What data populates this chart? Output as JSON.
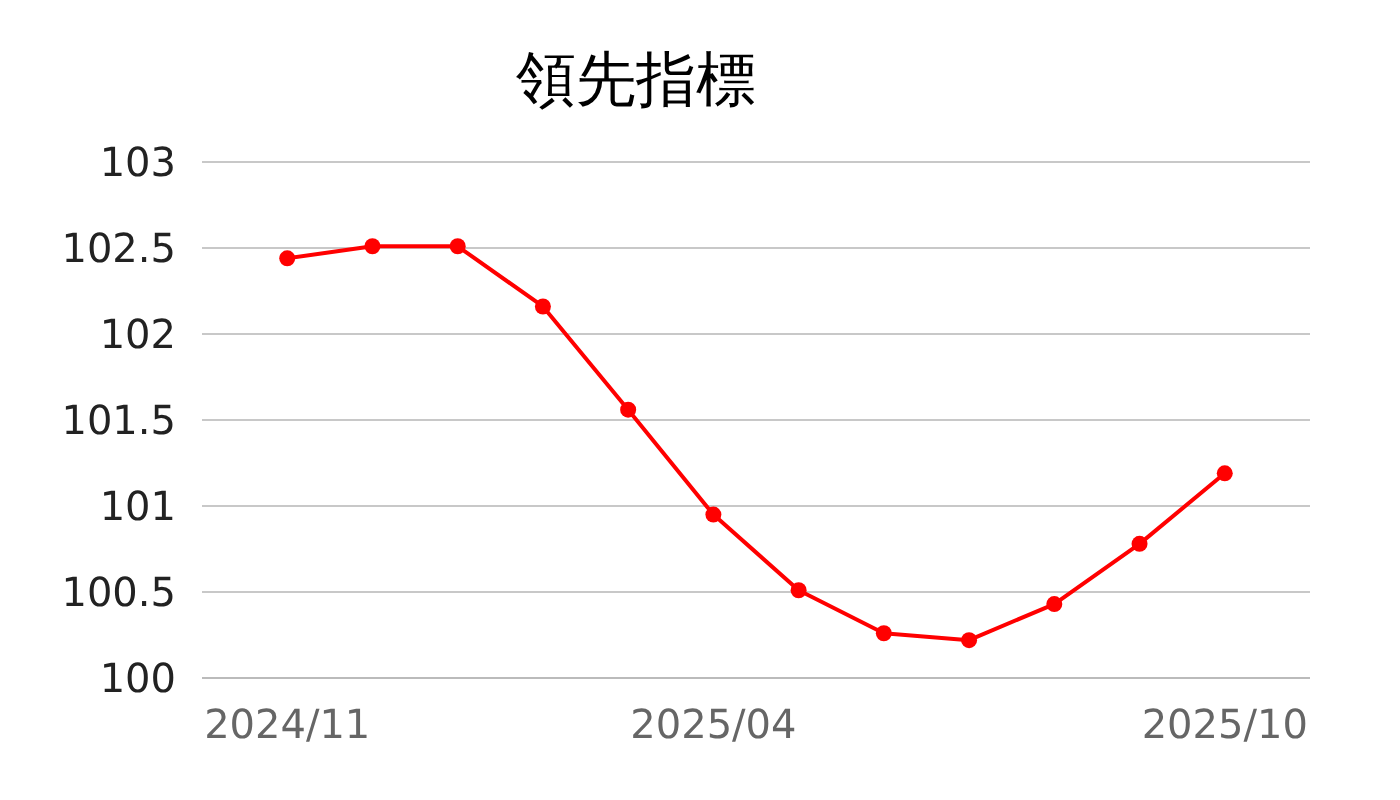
{
  "chart_data": {
    "type": "line",
    "title": "領先指標",
    "categories": [
      "2024/11",
      null,
      null,
      null,
      null,
      "2025/04",
      null,
      null,
      null,
      null,
      null,
      "2025/10"
    ],
    "series": [
      {
        "color": "#ff0000",
        "values": [
          102.44,
          102.51,
          102.51,
          102.16,
          101.56,
          100.95,
          100.51,
          100.26,
          100.22,
          100.43,
          100.78,
          101.19
        ]
      }
    ],
    "ylim": [
      100,
      103
    ],
    "yticks": [
      100,
      100.5,
      101,
      101.5,
      102,
      102.5,
      103
    ],
    "grid": "y",
    "marker": "circle",
    "line_style": "solid"
  }
}
